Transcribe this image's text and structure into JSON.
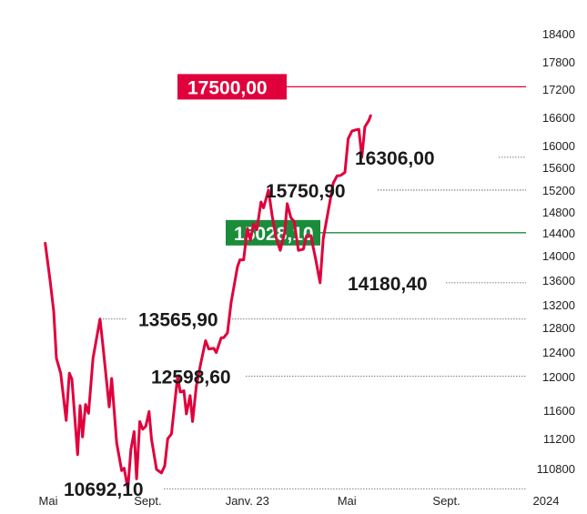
{
  "chart_data": {
    "type": "line",
    "title": "",
    "xlabel": "",
    "ylabel": "",
    "y_ticks": [
      "18400",
      "17800",
      "17200",
      "16600",
      "16000",
      "15600",
      "15200",
      "14800",
      "14400",
      "14000",
      "13600",
      "13200",
      "12800",
      "12400",
      "12000",
      "11600",
      "11200",
      "110800"
    ],
    "x_ticks": [
      "Mai",
      "Sept.",
      "Janv. 23",
      "Mai",
      "Sept.",
      "2024"
    ],
    "x_tick_positions": [
      0,
      4,
      8,
      12,
      16,
      20
    ],
    "colors": {
      "line": "#e0003c",
      "resistance": "#e0003c",
      "support": "#1a8c3a"
    },
    "series": [
      {
        "values": [
          [
            -0.12,
            14850
          ],
          [
            0.08,
            14200
          ],
          [
            0.22,
            13700
          ],
          [
            0.33,
            12900
          ],
          [
            0.5,
            12650
          ],
          [
            0.72,
            11850
          ],
          [
            0.85,
            12650
          ],
          [
            0.95,
            12550
          ],
          [
            1.18,
            11270
          ],
          [
            1.28,
            12100
          ],
          [
            1.38,
            11570
          ],
          [
            1.5,
            12120
          ],
          [
            1.62,
            11970
          ],
          [
            1.8,
            12900
          ],
          [
            2.08,
            13565.9
          ],
          [
            2.2,
            13100
          ],
          [
            2.45,
            12080
          ],
          [
            2.55,
            12560
          ],
          [
            2.75,
            11470
          ],
          [
            2.95,
            11000
          ],
          [
            3.05,
            11040
          ],
          [
            3.2,
            10692.1
          ],
          [
            3.32,
            11350
          ],
          [
            3.45,
            11660
          ],
          [
            3.55,
            10860
          ],
          [
            3.68,
            11830
          ],
          [
            3.8,
            11700
          ],
          [
            3.92,
            11750
          ],
          [
            4.05,
            12000
          ],
          [
            4.15,
            11530
          ],
          [
            4.35,
            11020
          ],
          [
            4.55,
            10960
          ],
          [
            4.68,
            11080
          ],
          [
            4.8,
            11540
          ],
          [
            4.95,
            11620
          ],
          [
            5.2,
            12598.6
          ],
          [
            5.3,
            12330
          ],
          [
            5.45,
            12350
          ],
          [
            5.55,
            11960
          ],
          [
            5.7,
            12270
          ],
          [
            5.8,
            11830
          ],
          [
            5.95,
            12430
          ],
          [
            6.12,
            12800
          ],
          [
            6.32,
            13200
          ],
          [
            6.45,
            13060
          ],
          [
            6.65,
            13070
          ],
          [
            6.75,
            13000
          ],
          [
            6.95,
            13250
          ],
          [
            7.05,
            13250
          ],
          [
            7.2,
            13330
          ],
          [
            7.35,
            13850
          ],
          [
            7.6,
            14450
          ],
          [
            7.7,
            14570
          ],
          [
            7.85,
            14570
          ],
          [
            8.0,
            15100
          ],
          [
            8.12,
            14900
          ],
          [
            8.25,
            15180
          ],
          [
            8.38,
            15080
          ],
          [
            8.55,
            15550
          ],
          [
            8.65,
            15450
          ],
          [
            8.85,
            15750.9
          ],
          [
            9.0,
            15310
          ],
          [
            9.15,
            14950
          ],
          [
            9.32,
            14730
          ],
          [
            9.5,
            15030
          ],
          [
            9.6,
            15520
          ],
          [
            9.75,
            15280
          ],
          [
            9.88,
            15220
          ],
          [
            10.05,
            14730
          ],
          [
            10.25,
            14750
          ],
          [
            10.38,
            14980
          ],
          [
            10.55,
            14980
          ],
          [
            10.75,
            14570
          ],
          [
            10.92,
            14180.4
          ],
          [
            11.05,
            14930
          ],
          [
            11.25,
            15400
          ],
          [
            11.45,
            15870
          ],
          [
            11.6,
            15990
          ],
          [
            11.75,
            16000
          ],
          [
            11.92,
            16050
          ],
          [
            12.05,
            16620
          ],
          [
            12.2,
            16750
          ],
          [
            12.35,
            16770
          ],
          [
            12.48,
            16780
          ],
          [
            12.6,
            16306
          ],
          [
            12.72,
            16820
          ],
          [
            12.88,
            16930
          ],
          [
            12.95,
            17010
          ]
        ]
      }
    ],
    "annotations": {
      "resistance": "17500,00",
      "resistance_value": 17500,
      "support": "15028,10",
      "support_value": 15028.1,
      "high_mid": "15750,90",
      "high_mid_value": 15750.9,
      "high_late": "16306,00",
      "high_late_value": 16306,
      "low_mid": "14180,40",
      "low_mid_value": 14180.4,
      "peak": "13565,90",
      "peak_value": 13565.9,
      "rebound": "12598,60",
      "rebound_value": 12598.6,
      "low": "10692,10",
      "low_value": 10692.1
    }
  }
}
